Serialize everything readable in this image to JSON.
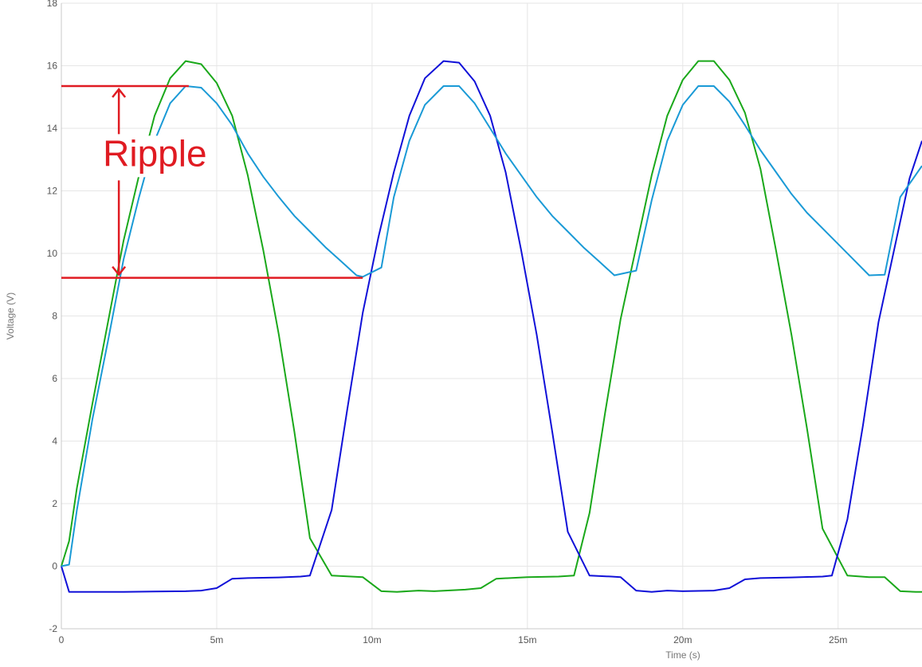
{
  "chart_data": {
    "type": "line",
    "xlabel": "Time (s)",
    "ylabel": "Voltage (V)",
    "xlim": [
      0,
      0.0277
    ],
    "ylim": [
      -2,
      18
    ],
    "grid": true,
    "x_ticks": [
      {
        "value": 0,
        "label": "0"
      },
      {
        "value": 0.005,
        "label": "5m"
      },
      {
        "value": 0.01,
        "label": "10m"
      },
      {
        "value": 0.015,
        "label": "15m"
      },
      {
        "value": 0.02,
        "label": "20m"
      },
      {
        "value": 0.025,
        "label": "25m"
      }
    ],
    "y_ticks": [
      {
        "value": -2,
        "label": "-2"
      },
      {
        "value": 0,
        "label": "0"
      },
      {
        "value": 2,
        "label": "2"
      },
      {
        "value": 4,
        "label": "4"
      },
      {
        "value": 6,
        "label": "6"
      },
      {
        "value": 8,
        "label": "8"
      },
      {
        "value": 10,
        "label": "10"
      },
      {
        "value": 12,
        "label": "12"
      },
      {
        "value": 14,
        "label": "14"
      },
      {
        "value": 16,
        "label": "16"
      },
      {
        "value": 18,
        "label": "18"
      }
    ],
    "series": [
      {
        "color": "#1aa81a",
        "points": [
          [
            0,
            0
          ],
          [
            0.00025,
            0.8
          ],
          [
            0.0005,
            2.5
          ],
          [
            0.001,
            5.2
          ],
          [
            0.0015,
            7.8
          ],
          [
            0.002,
            10.4
          ],
          [
            0.0025,
            12.5
          ],
          [
            0.003,
            14.4
          ],
          [
            0.0035,
            15.6
          ],
          [
            0.004,
            16.15
          ],
          [
            0.0045,
            16.05
          ],
          [
            0.005,
            15.45
          ],
          [
            0.0055,
            14.4
          ],
          [
            0.006,
            12.5
          ],
          [
            0.0065,
            10.1
          ],
          [
            0.007,
            7.4
          ],
          [
            0.0075,
            4.3
          ],
          [
            0.008,
            0.9
          ],
          [
            0.0087,
            -0.3
          ],
          [
            0.0097,
            -0.35
          ],
          [
            0.0103,
            -0.8
          ],
          [
            0.0108,
            -0.82
          ],
          [
            0.0115,
            -0.78
          ],
          [
            0.012,
            -0.8
          ],
          [
            0.013,
            -0.75
          ],
          [
            0.0135,
            -0.7
          ],
          [
            0.014,
            -0.4
          ],
          [
            0.015,
            -0.35
          ],
          [
            0.016,
            -0.33
          ],
          [
            0.0165,
            -0.3
          ],
          [
            0.017,
            1.7
          ],
          [
            0.0175,
            4.9
          ],
          [
            0.018,
            7.9
          ],
          [
            0.0185,
            10.2
          ],
          [
            0.019,
            12.5
          ],
          [
            0.0195,
            14.4
          ],
          [
            0.02,
            15.55
          ],
          [
            0.0205,
            16.15
          ],
          [
            0.021,
            16.15
          ],
          [
            0.0215,
            15.55
          ],
          [
            0.022,
            14.5
          ],
          [
            0.0225,
            12.7
          ],
          [
            0.023,
            10.1
          ],
          [
            0.0235,
            7.4
          ],
          [
            0.024,
            4.4
          ],
          [
            0.0245,
            1.2
          ],
          [
            0.0253,
            -0.3
          ],
          [
            0.026,
            -0.35
          ],
          [
            0.0265,
            -0.35
          ],
          [
            0.027,
            -0.8
          ],
          [
            0.0275,
            -0.82
          ],
          [
            0.0277,
            -0.82
          ]
        ]
      },
      {
        "color": "#1010d8",
        "points": [
          [
            0,
            0
          ],
          [
            0.00025,
            -0.82
          ],
          [
            0.001,
            -0.82
          ],
          [
            0.002,
            -0.82
          ],
          [
            0.003,
            -0.81
          ],
          [
            0.004,
            -0.8
          ],
          [
            0.0045,
            -0.78
          ],
          [
            0.005,
            -0.7
          ],
          [
            0.0055,
            -0.4
          ],
          [
            0.006,
            -0.38
          ],
          [
            0.007,
            -0.36
          ],
          [
            0.0077,
            -0.33
          ],
          [
            0.008,
            -0.3
          ],
          [
            0.0087,
            1.8
          ],
          [
            0.0092,
            5.0
          ],
          [
            0.0097,
            8.1
          ],
          [
            0.0102,
            10.5
          ],
          [
            0.0107,
            12.6
          ],
          [
            0.0112,
            14.4
          ],
          [
            0.0117,
            15.6
          ],
          [
            0.0123,
            16.15
          ],
          [
            0.0128,
            16.1
          ],
          [
            0.0133,
            15.5
          ],
          [
            0.0138,
            14.4
          ],
          [
            0.0143,
            12.6
          ],
          [
            0.0148,
            10.1
          ],
          [
            0.0153,
            7.4
          ],
          [
            0.0158,
            4.3
          ],
          [
            0.0163,
            1.1
          ],
          [
            0.017,
            -0.3
          ],
          [
            0.0177,
            -0.33
          ],
          [
            0.018,
            -0.35
          ],
          [
            0.0185,
            -0.78
          ],
          [
            0.019,
            -0.82
          ],
          [
            0.0195,
            -0.78
          ],
          [
            0.02,
            -0.8
          ],
          [
            0.021,
            -0.78
          ],
          [
            0.0215,
            -0.7
          ],
          [
            0.022,
            -0.42
          ],
          [
            0.0225,
            -0.38
          ],
          [
            0.0235,
            -0.36
          ],
          [
            0.0245,
            -0.33
          ],
          [
            0.0248,
            -0.3
          ],
          [
            0.0253,
            1.5
          ],
          [
            0.0258,
            4.5
          ],
          [
            0.0263,
            7.8
          ],
          [
            0.0268,
            10.1
          ],
          [
            0.0273,
            12.4
          ],
          [
            0.0277,
            13.6
          ]
        ]
      },
      {
        "color": "#1a9ad6",
        "points": [
          [
            0,
            0
          ],
          [
            0.00025,
            0.05
          ],
          [
            0.0005,
            1.8
          ],
          [
            0.001,
            4.7
          ],
          [
            0.0015,
            7.2
          ],
          [
            0.002,
            9.8
          ],
          [
            0.0025,
            11.8
          ],
          [
            0.003,
            13.6
          ],
          [
            0.0035,
            14.8
          ],
          [
            0.004,
            15.35
          ],
          [
            0.0045,
            15.3
          ],
          [
            0.005,
            14.8
          ],
          [
            0.0055,
            14.1
          ],
          [
            0.006,
            13.2
          ],
          [
            0.0065,
            12.45
          ],
          [
            0.007,
            11.8
          ],
          [
            0.0075,
            11.2
          ],
          [
            0.008,
            10.7
          ],
          [
            0.0085,
            10.2
          ],
          [
            0.009,
            9.75
          ],
          [
            0.0095,
            9.3
          ],
          [
            0.0097,
            9.25
          ],
          [
            0.0103,
            9.55
          ],
          [
            0.0107,
            11.8
          ],
          [
            0.0112,
            13.6
          ],
          [
            0.0117,
            14.75
          ],
          [
            0.0123,
            15.35
          ],
          [
            0.0128,
            15.35
          ],
          [
            0.0133,
            14.8
          ],
          [
            0.0138,
            14.0
          ],
          [
            0.0143,
            13.2
          ],
          [
            0.0148,
            12.5
          ],
          [
            0.0153,
            11.8
          ],
          [
            0.0158,
            11.2
          ],
          [
            0.0163,
            10.7
          ],
          [
            0.0168,
            10.2
          ],
          [
            0.0173,
            9.75
          ],
          [
            0.0178,
            9.3
          ],
          [
            0.0185,
            9.45
          ],
          [
            0.019,
            11.7
          ],
          [
            0.0195,
            13.6
          ],
          [
            0.02,
            14.75
          ],
          [
            0.0205,
            15.35
          ],
          [
            0.021,
            15.35
          ],
          [
            0.0215,
            14.85
          ],
          [
            0.022,
            14.1
          ],
          [
            0.0225,
            13.3
          ],
          [
            0.023,
            12.6
          ],
          [
            0.0235,
            11.9
          ],
          [
            0.024,
            11.3
          ],
          [
            0.0245,
            10.8
          ],
          [
            0.025,
            10.3
          ],
          [
            0.0255,
            9.8
          ],
          [
            0.026,
            9.3
          ],
          [
            0.0265,
            9.32
          ],
          [
            0.027,
            11.8
          ],
          [
            0.0277,
            12.8
          ]
        ]
      }
    ],
    "annotation": {
      "label": "Ripple",
      "color": "#e01b22",
      "upper_y": 15.35,
      "lower_y": 9.22,
      "upper_x_end": 0.0041,
      "lower_x_end": 0.0097,
      "arrow_x": 0.00185
    }
  }
}
